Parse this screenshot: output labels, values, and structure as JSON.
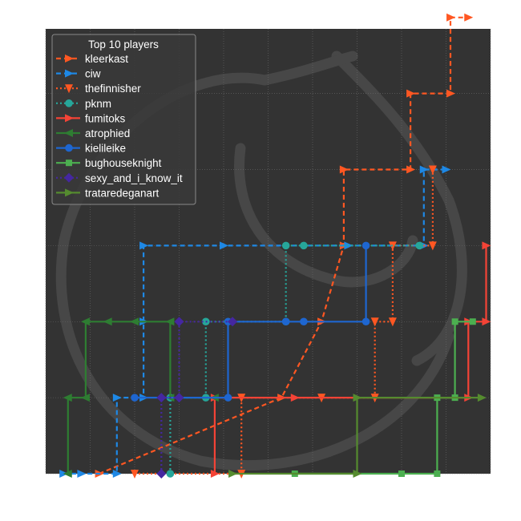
{
  "chart_data": {
    "type": "line",
    "legend": {
      "title": "Top 10 players",
      "placement": "top-left"
    },
    "grid": true,
    "background_color": "#333333",
    "xlim": [
      0,
      100
    ],
    "ylim": [
      0,
      5.85
    ],
    "series": [
      {
        "name": "kleerkast",
        "color": "#ff5722",
        "dash": "6,4",
        "marker": "triangle-right",
        "points": [
          [
            12,
            0
          ],
          [
            53,
            1
          ],
          [
            62,
            2
          ],
          [
            67,
            3
          ],
          [
            67,
            4
          ],
          [
            82,
            4
          ],
          [
            82,
            5
          ],
          [
            91,
            5
          ],
          [
            91,
            6
          ],
          [
            95,
            6
          ]
        ]
      },
      {
        "name": "ciw",
        "color": "#1e88e5",
        "dash": "6,4",
        "marker": "triangle-right",
        "points": [
          [
            4,
            0
          ],
          [
            8,
            0
          ],
          [
            16,
            0
          ],
          [
            16,
            1
          ],
          [
            22,
            1
          ],
          [
            22,
            2
          ],
          [
            22,
            3
          ],
          [
            40,
            3
          ],
          [
            68,
            3
          ],
          [
            85,
            3
          ],
          [
            85,
            4
          ],
          [
            90,
            4
          ]
        ]
      },
      {
        "name": "thefinnisher",
        "color": "#ff5722",
        "dash": "2,3",
        "marker": "triangle-down",
        "points": [
          [
            20,
            0
          ],
          [
            44,
            0
          ],
          [
            44,
            1
          ],
          [
            62,
            1
          ],
          [
            74,
            1
          ],
          [
            74,
            2
          ],
          [
            78,
            2
          ],
          [
            78,
            3
          ],
          [
            87,
            3
          ],
          [
            87,
            4
          ]
        ]
      },
      {
        "name": "pknm",
        "color": "#26a69a",
        "dash": "2,3",
        "marker": "circle",
        "points": [
          [
            28,
            0
          ],
          [
            28,
            1
          ],
          [
            36,
            1
          ],
          [
            36,
            2
          ],
          [
            54,
            2
          ],
          [
            54,
            3
          ],
          [
            58,
            3
          ],
          [
            84,
            3
          ]
        ]
      },
      {
        "name": "fumitoks",
        "color": "#f44336",
        "dash": "",
        "marker": "triangle-right",
        "points": [
          [
            38,
            0
          ],
          [
            38,
            1
          ],
          [
            56,
            1
          ],
          [
            95,
            1
          ],
          [
            95,
            2
          ],
          [
            99,
            2
          ],
          [
            99,
            3
          ]
        ]
      },
      {
        "name": "atrophied",
        "color": "#2e7d32",
        "dash": "",
        "marker": "triangle-left",
        "points": [
          [
            5,
            0
          ],
          [
            5,
            1
          ],
          [
            9,
            1
          ],
          [
            9,
            2
          ],
          [
            14,
            2
          ],
          [
            20,
            2
          ],
          [
            28,
            2
          ],
          [
            28,
            1
          ],
          [
            38,
            1
          ]
        ]
      },
      {
        "name": "kielileike",
        "color": "#1e66d0",
        "dash": "",
        "marker": "circle",
        "points": [
          [
            20,
            1
          ],
          [
            41,
            1
          ],
          [
            41,
            2
          ],
          [
            54,
            2
          ],
          [
            58,
            2
          ],
          [
            72,
            2
          ],
          [
            72,
            3
          ]
        ]
      },
      {
        "name": "bughouseknight",
        "color": "#4caf50",
        "dash": "",
        "marker": "square",
        "points": [
          [
            56,
            0
          ],
          [
            80,
            0
          ],
          [
            88,
            0
          ],
          [
            88,
            1
          ],
          [
            92,
            1
          ],
          [
            92,
            2
          ],
          [
            96,
            2
          ]
        ]
      },
      {
        "name": "sexy_and_i_know_it",
        "color": "#4527a0",
        "dash": "2,3",
        "marker": "diamond",
        "points": [
          [
            26,
            0
          ],
          [
            26,
            1
          ],
          [
            30,
            1
          ],
          [
            30,
            2
          ],
          [
            42,
            2
          ]
        ]
      },
      {
        "name": "trataredeganart",
        "color": "#558b2f",
        "dash": "",
        "marker": "triangle-right",
        "points": [
          [
            42,
            0
          ],
          [
            70,
            0
          ],
          [
            70,
            1
          ],
          [
            98,
            1
          ]
        ]
      }
    ]
  }
}
